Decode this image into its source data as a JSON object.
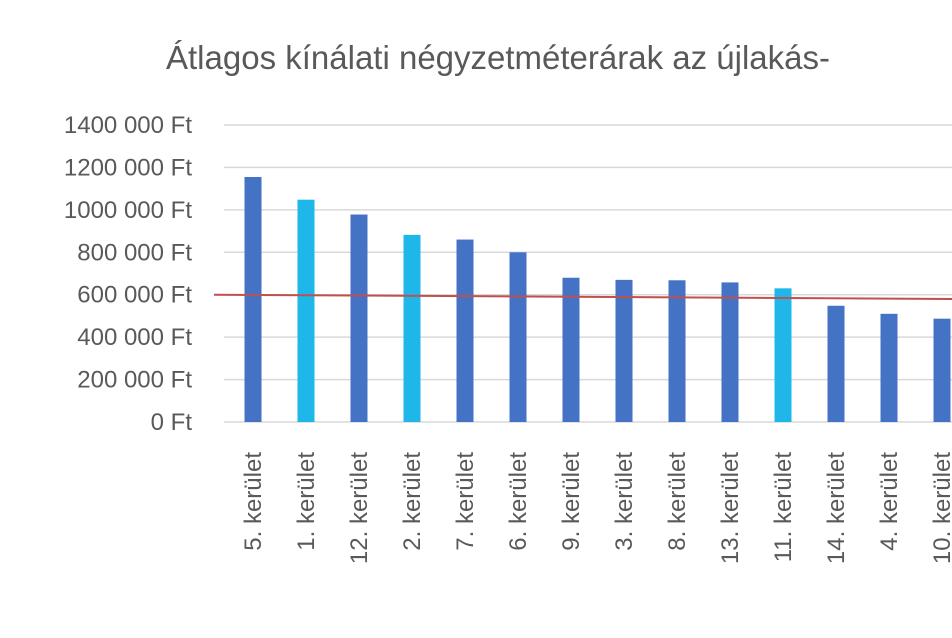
{
  "chart_data": {
    "type": "bar",
    "title": "Átlagos kínálati négyzetméterárak az újlakás-",
    "categories": [
      "5. kerület",
      "1. kerület",
      "12. kerület",
      "2. kerület",
      "7. kerület",
      "6. kerület",
      "9. kerület",
      "3. kerület",
      "8. kerület",
      "13. kerület",
      "11. kerület",
      "14. kerület",
      "4. kerület",
      "10. kerület"
    ],
    "values": [
      1155000,
      1048000,
      978000,
      882000,
      860000,
      800000,
      680000,
      670000,
      668000,
      658000,
      630000,
      548000,
      510000,
      487000
    ],
    "bar_colors": [
      "#4472c4",
      "#1fb7ea",
      "#4472c4",
      "#1fb7ea",
      "#4472c4",
      "#4472c4",
      "#4472c4",
      "#4472c4",
      "#4472c4",
      "#4472c4",
      "#1fb7ea",
      "#4472c4",
      "#4472c4",
      "#4472c4"
    ],
    "reference_line": {
      "start": 600000,
      "end": 580000,
      "color": "#c0504d"
    },
    "yticks": [
      "0 Ft",
      "200 000 Ft",
      "400 000 Ft",
      "600 000 Ft",
      "800 000 Ft",
      "1000 000 Ft",
      "1200 000 Ft",
      "1400 000 Ft"
    ],
    "ylim": [
      0,
      1400000
    ],
    "grid": true,
    "xlabel": "",
    "ylabel": ""
  }
}
